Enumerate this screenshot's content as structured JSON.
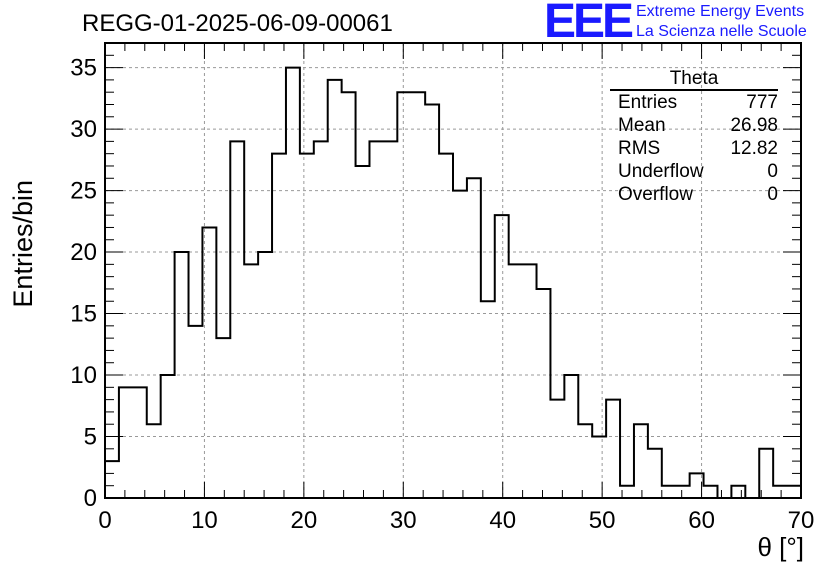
{
  "title": "REGG-01-2025-06-09-00061",
  "logo": {
    "mark": "EEE",
    "line1": "Extreme Energy Events",
    "line2": "La Scienza nelle Scuole",
    "color": "#1a1aff"
  },
  "stats": {
    "name": "Theta",
    "entries_label": "Entries",
    "entries": "777",
    "mean_label": "Mean",
    "mean": "26.98",
    "rms_label": "RMS",
    "rms": "12.82",
    "underflow_label": "Underflow",
    "underflow": "0",
    "overflow_label": "Overflow",
    "overflow": "0"
  },
  "chart_data": {
    "type": "bar",
    "style": "step-histogram",
    "title": "REGG-01-2025-06-09-00061",
    "xlabel": "θ [°]",
    "ylabel": "Entries/bin",
    "xlim": [
      0,
      70
    ],
    "ylim": [
      0,
      37
    ],
    "bin_width": 1.4,
    "xticks": [
      0,
      10,
      20,
      30,
      40,
      50,
      60,
      70
    ],
    "yticks": [
      0,
      5,
      10,
      15,
      20,
      25,
      30,
      35
    ],
    "grid": true,
    "values": [
      3,
      9,
      9,
      6,
      10,
      20,
      14,
      22,
      13,
      29,
      19,
      20,
      28,
      35,
      28,
      29,
      34,
      33,
      27,
      29,
      29,
      33,
      33,
      32,
      28,
      25,
      26,
      16,
      23,
      19,
      19,
      17,
      8,
      10,
      6,
      5,
      8,
      1,
      6,
      4,
      1,
      1,
      2,
      1,
      0,
      1,
      0,
      4,
      1,
      1
    ]
  }
}
